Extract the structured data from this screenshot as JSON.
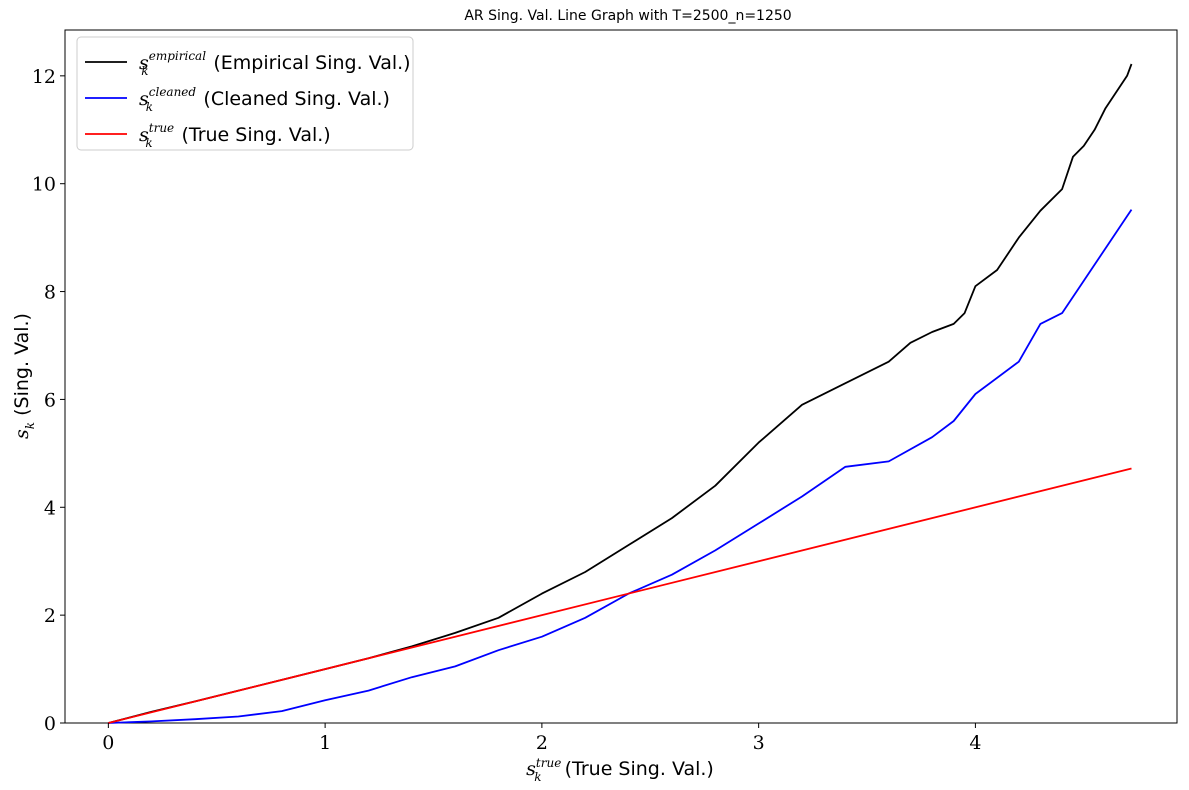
{
  "chart_data": {
    "type": "line",
    "title": "AR Sing. Val. Line Graph with T=2500_n=1250",
    "xlabel": {
      "symbol": "s",
      "subscript": "k",
      "superscript": "true",
      "text": " (True Sing. Val.)"
    },
    "ylabel": {
      "symbol": "s",
      "subscript": "k",
      "text": " (Sing. Val.)"
    },
    "xlim": [
      -0.2,
      4.93
    ],
    "ylim": [
      0,
      12.85
    ],
    "xticks": [
      0,
      1,
      2,
      3,
      4
    ],
    "yticks": [
      0,
      2,
      4,
      6,
      8,
      10,
      12
    ],
    "grid": false,
    "legend_position": "top-left",
    "series": [
      {
        "name": "(Empirical Sing. Val.)",
        "legend_symbol": "s",
        "legend_subscript": "k",
        "legend_superscript": "empirical",
        "color": "#000000",
        "x": [
          0,
          0.2,
          0.4,
          0.6,
          0.8,
          1.0,
          1.2,
          1.4,
          1.6,
          1.8,
          2.0,
          2.2,
          2.4,
          2.6,
          2.8,
          3.0,
          3.2,
          3.4,
          3.6,
          3.7,
          3.8,
          3.9,
          3.95,
          4.0,
          4.1,
          4.2,
          4.3,
          4.4,
          4.45,
          4.5,
          4.55,
          4.6,
          4.7,
          4.72
        ],
        "y": [
          0,
          0.21,
          0.4,
          0.6,
          0.8,
          1.0,
          1.2,
          1.42,
          1.67,
          1.95,
          2.4,
          2.8,
          3.3,
          3.8,
          4.4,
          5.2,
          5.9,
          6.3,
          6.7,
          7.05,
          7.25,
          7.4,
          7.6,
          8.1,
          8.4,
          9.0,
          9.5,
          9.9,
          10.5,
          10.7,
          11.0,
          11.4,
          12.0,
          12.22
        ]
      },
      {
        "name": "(Cleaned Sing. Val.)",
        "legend_symbol": "s",
        "legend_subscript": "k",
        "legend_superscript": "cleaned",
        "color": "#0000ff",
        "x": [
          0,
          0.2,
          0.4,
          0.6,
          0.8,
          1.0,
          1.2,
          1.4,
          1.6,
          1.8,
          2.0,
          2.2,
          2.4,
          2.6,
          2.8,
          3.0,
          3.2,
          3.4,
          3.6,
          3.8,
          3.9,
          4.0,
          4.2,
          4.3,
          4.4,
          4.5,
          4.55,
          4.6,
          4.7,
          4.72
        ],
        "y": [
          0,
          0.03,
          0.07,
          0.12,
          0.22,
          0.42,
          0.6,
          0.85,
          1.05,
          1.35,
          1.6,
          1.95,
          2.4,
          2.75,
          3.2,
          3.7,
          4.2,
          4.75,
          4.85,
          5.3,
          5.6,
          6.1,
          6.7,
          7.4,
          7.6,
          8.2,
          8.5,
          8.8,
          9.4,
          9.52
        ]
      },
      {
        "name": "(True Sing. Val.)",
        "legend_symbol": "s",
        "legend_subscript": "k",
        "legend_superscript": "true",
        "color": "#ff0000",
        "x": [
          0,
          4.72
        ],
        "y": [
          0,
          4.72
        ]
      }
    ]
  }
}
